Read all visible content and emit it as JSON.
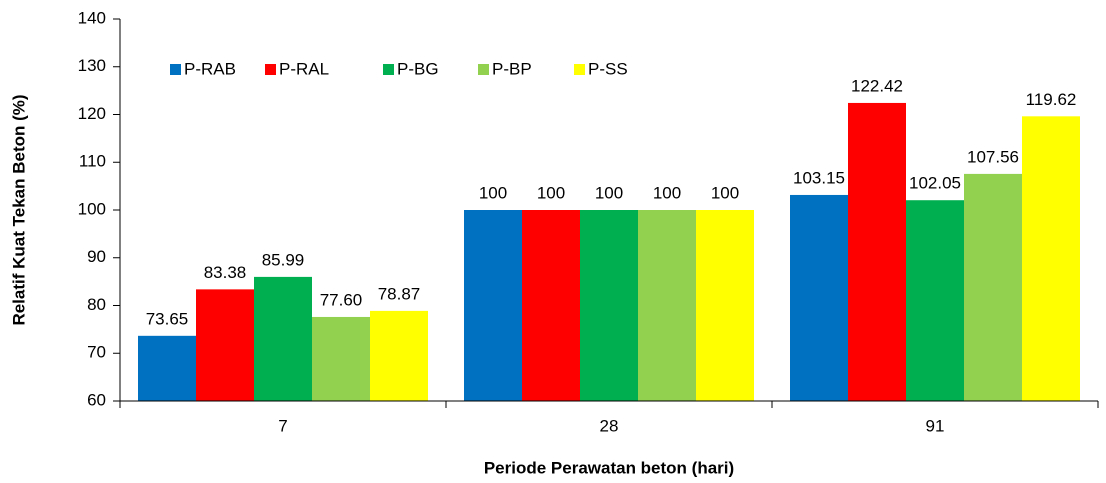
{
  "chart_data": {
    "type": "bar",
    "xlabel": "Periode Perawatan beton (hari)",
    "ylabel": "Relatif Kuat Tekan Beton (%)",
    "categories": [
      "7",
      "28",
      "91"
    ],
    "series": [
      {
        "name": "P-RAB",
        "color": "#0070c0",
        "values": [
          73.65,
          100,
          103.15
        ],
        "value_labels": [
          "73.65",
          "100",
          "103.15"
        ]
      },
      {
        "name": "P-RAL",
        "color": "#ff0000",
        "values": [
          83.38,
          100,
          122.42
        ],
        "value_labels": [
          "83.38",
          "100",
          "122.42"
        ]
      },
      {
        "name": "P-BG",
        "color": "#00b050",
        "values": [
          85.99,
          100,
          102.05
        ],
        "value_labels": [
          "85.99",
          "100",
          "102.05"
        ]
      },
      {
        "name": "P-BP",
        "color": "#92d050",
        "values": [
          77.6,
          100,
          107.56
        ],
        "value_labels": [
          "77.60",
          "100",
          "107.56"
        ]
      },
      {
        "name": "P-SS",
        "color": "#ffff00",
        "values": [
          78.87,
          100,
          119.62
        ],
        "value_labels": [
          "78.87",
          "100",
          "119.62"
        ]
      }
    ],
    "ylim": [
      60,
      140
    ],
    "yticks": [
      60,
      70,
      80,
      90,
      100,
      110,
      120,
      130,
      140
    ],
    "legend": "top-left",
    "grid": false
  }
}
